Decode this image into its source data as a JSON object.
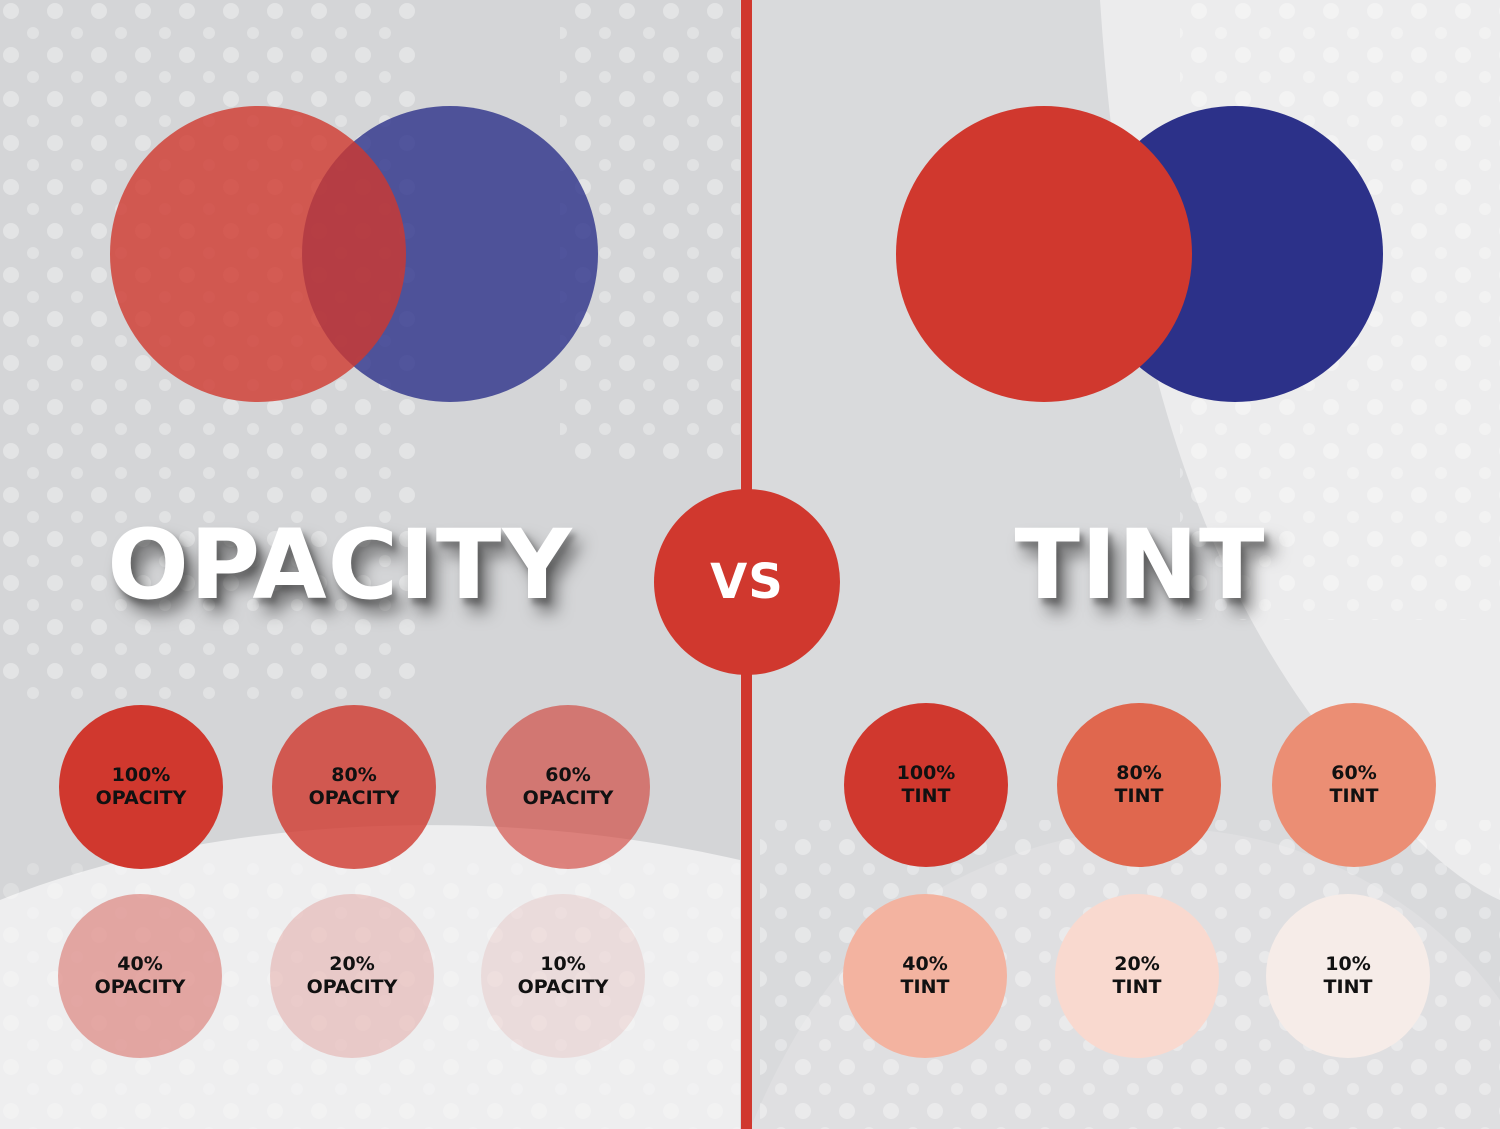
{
  "colors": {
    "red": "#d0382e",
    "blue": "#2c3189",
    "background": "#d9dadc",
    "white": "#ffffff"
  },
  "opacity_panel": {
    "title": "OPACITY",
    "swatches": [
      {
        "line1": "100%",
        "line2": "OPACITY",
        "opacity": 1.0
      },
      {
        "line1": "80%",
        "line2": "OPACITY",
        "opacity": 0.8
      },
      {
        "line1": "60%",
        "line2": "OPACITY",
        "opacity": 0.6
      },
      {
        "line1": "40%",
        "line2": "OPACITY",
        "opacity": 0.4
      },
      {
        "line1": "20%",
        "line2": "OPACITY",
        "opacity": 0.2
      },
      {
        "line1": "10%",
        "line2": "OPACITY",
        "opacity": 0.1
      }
    ]
  },
  "center": {
    "label": "VS"
  },
  "tint_panel": {
    "title": "TINT",
    "swatches": [
      {
        "line1": "100%",
        "line2": "TINT",
        "color": "#d0382e"
      },
      {
        "line1": "80%",
        "line2": "TINT",
        "color": "#e0674e"
      },
      {
        "line1": "60%",
        "line2": "TINT",
        "color": "#eb8e74"
      },
      {
        "line1": "40%",
        "line2": "TINT",
        "color": "#f3b3a0"
      },
      {
        "line1": "20%",
        "line2": "TINT",
        "color": "#f9d9cf"
      },
      {
        "line1": "10%",
        "line2": "TINT",
        "color": "#f6ece8"
      }
    ]
  }
}
